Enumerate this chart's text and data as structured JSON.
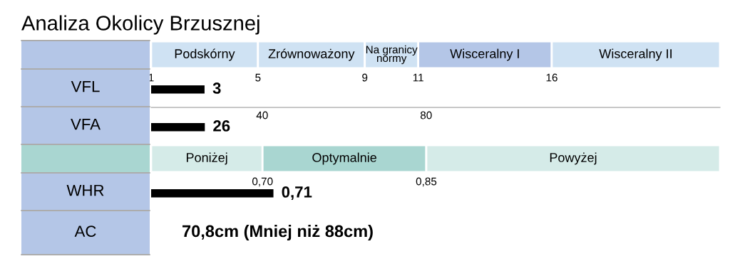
{
  "chart_data": [
    {
      "type": "bar",
      "title": "Analiza Okolicy Brzusznej",
      "orientation": "horizontal",
      "categories": [
        "VFL"
      ],
      "values": [
        3
      ],
      "value_labels": [
        "3"
      ],
      "color": "#000000",
      "xlim": [
        1,
        22.3
      ],
      "xticks": [
        1,
        5,
        9,
        11,
        16
      ],
      "bands": [
        {
          "axis": "x",
          "from": 1,
          "to": 5,
          "label": "Podskórny",
          "color": "#cfe2f3"
        },
        {
          "axis": "x",
          "from": 5,
          "to": 9,
          "label": "Zrównoważony",
          "color": "#cfe2f3"
        },
        {
          "axis": "x",
          "from": 9,
          "to": 11,
          "label": "Na granicy\nnormy",
          "color": "#cfe2f3"
        },
        {
          "axis": "x",
          "from": 11,
          "to": 16,
          "label": "Wisceralny I",
          "color": "#b4c6e7"
        },
        {
          "axis": "x",
          "from": 16,
          "to": 22.3,
          "label": "Wisceralny II",
          "color": "#cfe2f3"
        }
      ]
    },
    {
      "type": "bar",
      "orientation": "horizontal",
      "categories": [
        "VFA"
      ],
      "values": [
        26
      ],
      "value_labels": [
        "26"
      ],
      "color": "#000000",
      "xlim": [
        12.9,
        151.7
      ],
      "xticks": [
        40,
        80
      ]
    },
    {
      "type": "bar",
      "orientation": "horizontal",
      "categories": [
        "WHR"
      ],
      "values": [
        0.71
      ],
      "value_labels": [
        "0,71"
      ],
      "color": "#000000",
      "xlim": [
        0.598,
        1.119
      ],
      "xticks": [
        {
          "value": 0.7,
          "label": "0,70"
        },
        {
          "value": 0.85,
          "label": "0,85"
        }
      ],
      "bands": [
        {
          "axis": "x",
          "from": 0.598,
          "to": 0.7,
          "label": "Poniżej",
          "color": "#d5ebe8"
        },
        {
          "axis": "x",
          "from": 0.7,
          "to": 0.85,
          "label": "Optymalnie",
          "color": "#a9d6d1"
        },
        {
          "axis": "x",
          "from": 0.85,
          "to": 1.119,
          "label": "Powyżej",
          "color": "#d5ebe8"
        }
      ]
    },
    {
      "type": "other",
      "categories": [
        "AC"
      ],
      "annotations": [
        "70,8cm (Mniej niż 88cm)"
      ]
    }
  ]
}
